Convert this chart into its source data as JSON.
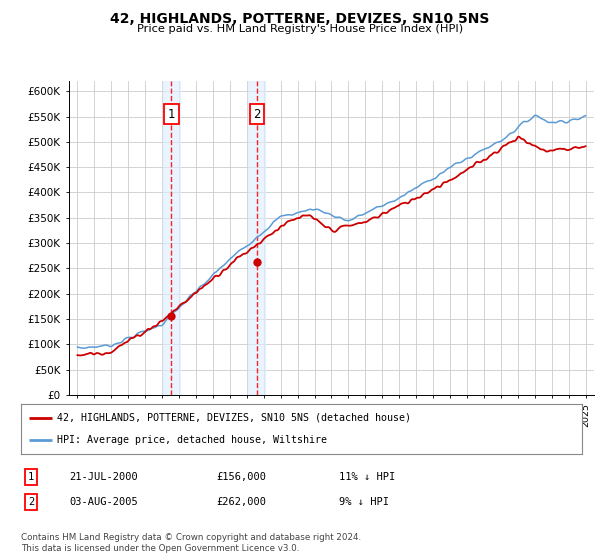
{
  "title": "42, HIGHLANDS, POTTERNE, DEVIZES, SN10 5NS",
  "subtitle": "Price paid vs. HM Land Registry's House Price Index (HPI)",
  "legend_line1": "42, HIGHLANDS, POTTERNE, DEVIZES, SN10 5NS (detached house)",
  "legend_line2": "HPI: Average price, detached house, Wiltshire",
  "footnote": "Contains HM Land Registry data © Crown copyright and database right 2024.\nThis data is licensed under the Open Government Licence v3.0.",
  "sale1_date": "21-JUL-2000",
  "sale1_price": "£156,000",
  "sale1_hpi": "11% ↓ HPI",
  "sale2_date": "03-AUG-2005",
  "sale2_price": "£262,000",
  "sale2_hpi": "9% ↓ HPI",
  "sale1_year": 2000.55,
  "sale2_year": 2005.59,
  "sale1_price_val": 156000,
  "sale2_price_val": 262000,
  "ylim": [
    0,
    620000
  ],
  "yticks": [
    0,
    50000,
    100000,
    150000,
    200000,
    250000,
    300000,
    350000,
    400000,
    450000,
    500000,
    550000,
    600000
  ],
  "xlim_start": 1994.5,
  "xlim_end": 2025.5,
  "xticks": [
    1995,
    1996,
    1997,
    1998,
    1999,
    2000,
    2001,
    2002,
    2003,
    2004,
    2005,
    2006,
    2007,
    2008,
    2009,
    2010,
    2011,
    2012,
    2013,
    2014,
    2015,
    2016,
    2017,
    2018,
    2019,
    2020,
    2021,
    2022,
    2023,
    2024,
    2025
  ],
  "hpi_color": "#5b9bd5",
  "sale_color": "#cc0000",
  "bg_color": "#ffffff",
  "grid_color": "#cccccc",
  "shade_color": "#ddeeff"
}
